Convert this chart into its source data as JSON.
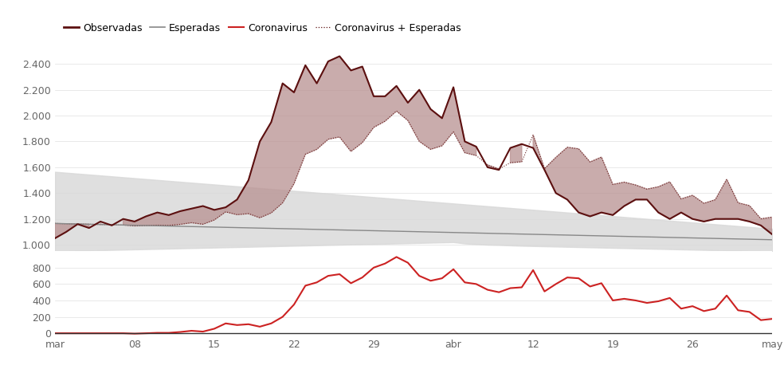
{
  "x_tick_labels": [
    "mar",
    "08",
    "15",
    "22",
    "29",
    "abr",
    "12",
    "19",
    "26",
    "may"
  ],
  "x_tick_positions": [
    0,
    7,
    14,
    21,
    28,
    35,
    42,
    49,
    56,
    63
  ],
  "y_upper_ticks": [
    1000,
    1200,
    1400,
    1600,
    1800,
    2000,
    2200,
    2400
  ],
  "y_lower_ticks": [
    0,
    200,
    400,
    600,
    800
  ],
  "observadas": [
    1050,
    1100,
    1160,
    1130,
    1180,
    1150,
    1200,
    1180,
    1220,
    1250,
    1230,
    1260,
    1280,
    1300,
    1270,
    1290,
    1350,
    1500,
    1800,
    1950,
    2250,
    2180,
    2390,
    2250,
    2420,
    2460,
    2350,
    2380,
    2150,
    2150,
    2230,
    2100,
    2200,
    2050,
    1980,
    2220,
    1800,
    1760,
    1600,
    1580,
    1750,
    1780,
    1750,
    1580,
    1400,
    1350,
    1250,
    1220,
    1250,
    1230,
    1300,
    1350,
    1350,
    1250,
    1200,
    1250,
    1200,
    1180,
    1200,
    1200,
    1200,
    1180,
    1150,
    1080
  ],
  "esperadas": [
    1165,
    1163,
    1161,
    1159,
    1157,
    1155,
    1153,
    1151,
    1149,
    1147,
    1145,
    1143,
    1141,
    1139,
    1137,
    1135,
    1133,
    1131,
    1129,
    1127,
    1125,
    1123,
    1121,
    1119,
    1117,
    1115,
    1113,
    1111,
    1109,
    1107,
    1105,
    1103,
    1101,
    1099,
    1097,
    1095,
    1093,
    1091,
    1089,
    1087,
    1085,
    1083,
    1081,
    1079,
    1077,
    1075,
    1073,
    1071,
    1069,
    1067,
    1065,
    1063,
    1061,
    1059,
    1057,
    1055,
    1053,
    1051,
    1049,
    1047,
    1045,
    1043,
    1041,
    1039
  ],
  "esperadas_upper": [
    1565,
    1558,
    1551,
    1544,
    1537,
    1530,
    1523,
    1516,
    1509,
    1502,
    1495,
    1488,
    1481,
    1474,
    1467,
    1460,
    1453,
    1446,
    1439,
    1432,
    1425,
    1418,
    1411,
    1404,
    1397,
    1390,
    1383,
    1376,
    1369,
    1362,
    1355,
    1348,
    1341,
    1334,
    1327,
    1320,
    1313,
    1306,
    1299,
    1292,
    1285,
    1278,
    1271,
    1264,
    1257,
    1250,
    1243,
    1236,
    1229,
    1222,
    1215,
    1208,
    1201,
    1194,
    1187,
    1180,
    1173,
    1166,
    1159,
    1152,
    1145,
    1138,
    1131,
    1124
  ],
  "esperadas_lower": [
    950,
    952,
    954,
    956,
    958,
    960,
    962,
    964,
    966,
    968,
    970,
    972,
    974,
    976,
    978,
    980,
    982,
    984,
    986,
    988,
    990,
    992,
    994,
    996,
    998,
    1000,
    1002,
    1004,
    1006,
    1008,
    1010,
    1012,
    1014,
    1016,
    1018,
    1020,
    1010,
    1005,
    1000,
    998,
    995,
    992,
    990,
    988,
    986,
    984,
    982,
    980,
    978,
    976,
    974,
    972,
    970,
    968,
    966,
    964,
    962,
    960,
    958,
    956,
    954,
    952,
    950,
    948
  ],
  "coronavirus": [
    0,
    0,
    0,
    0,
    0,
    0,
    0,
    -5,
    0,
    5,
    5,
    15,
    30,
    20,
    55,
    120,
    100,
    110,
    80,
    120,
    200,
    350,
    580,
    620,
    700,
    720,
    610,
    680,
    800,
    850,
    930,
    860,
    700,
    640,
    670,
    780,
    620,
    600,
    530,
    500,
    550,
    560,
    770,
    510,
    600,
    680,
    670,
    570,
    610,
    400,
    420,
    400,
    370,
    390,
    430,
    300,
    330,
    270,
    300,
    460,
    280,
    260,
    160,
    175
  ],
  "color_observadas": "#5c1010",
  "color_esperadas": "#888888",
  "color_coronavirus": "#cc2222",
  "color_fill_esperadas": "#d8d8d8",
  "color_fill_coronavirus": "#b89090",
  "bg_color": "#ffffff",
  "legend_fontsize": 9,
  "axis_fontsize": 9,
  "upper_ylim": [
    950,
    2520
  ],
  "lower_ylim": [
    -30,
    1000
  ]
}
